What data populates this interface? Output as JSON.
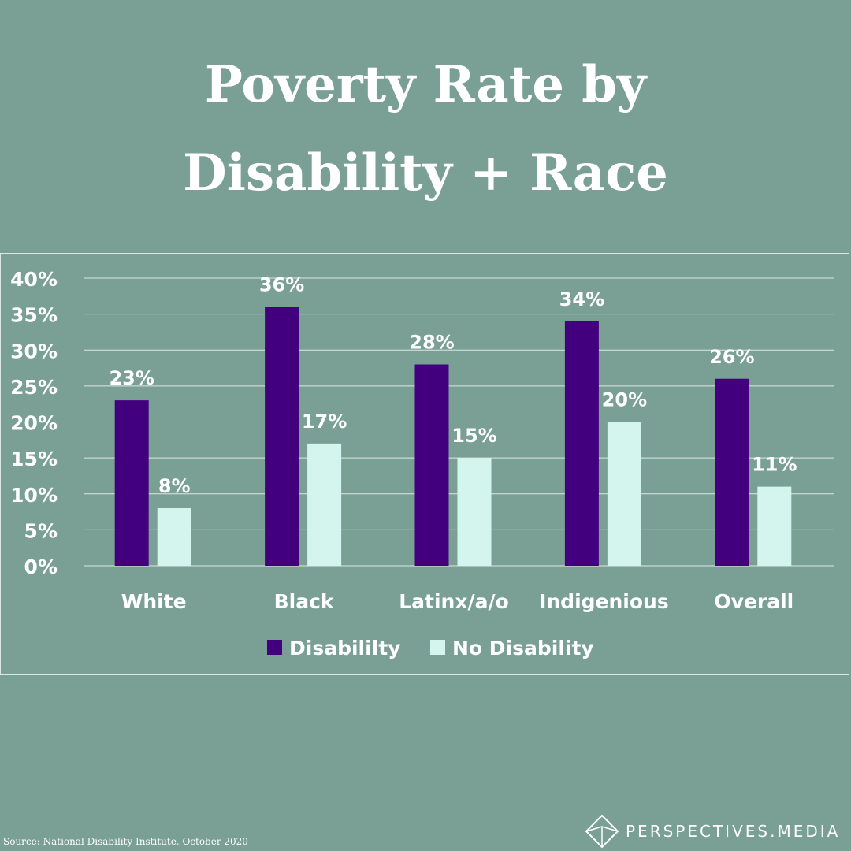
{
  "title_line1": "Poverty Rate by",
  "title_line2": "Disability + Race",
  "source": "Source:  National Disability Institute, October 2020",
  "brand": "PERSPECTIVES.MEDIA",
  "colors": {
    "background": "#7a9f94",
    "disability": "#42007f",
    "no_disability": "#d4f5ee",
    "text": "#ffffff"
  },
  "chart_data": {
    "type": "bar",
    "categories": [
      "White",
      "Black",
      "Latinx/a/o",
      "Indigenious",
      "Overall"
    ],
    "series": [
      {
        "name": "Disabililty",
        "values": [
          23,
          36,
          28,
          34,
          26
        ],
        "labels": [
          "23%",
          "36%",
          "28%",
          "34%",
          "26%"
        ]
      },
      {
        "name": "No Disability",
        "values": [
          8,
          17,
          15,
          20,
          11
        ],
        "labels": [
          "8%",
          "17%",
          "15%",
          "20%",
          "11%"
        ]
      }
    ],
    "ylim": [
      0,
      40
    ],
    "yticks": [
      "0%",
      "5%",
      "10%",
      "15%",
      "20%",
      "25%",
      "30%",
      "35%",
      "40%"
    ],
    "grid": true,
    "legend": "bottom"
  }
}
